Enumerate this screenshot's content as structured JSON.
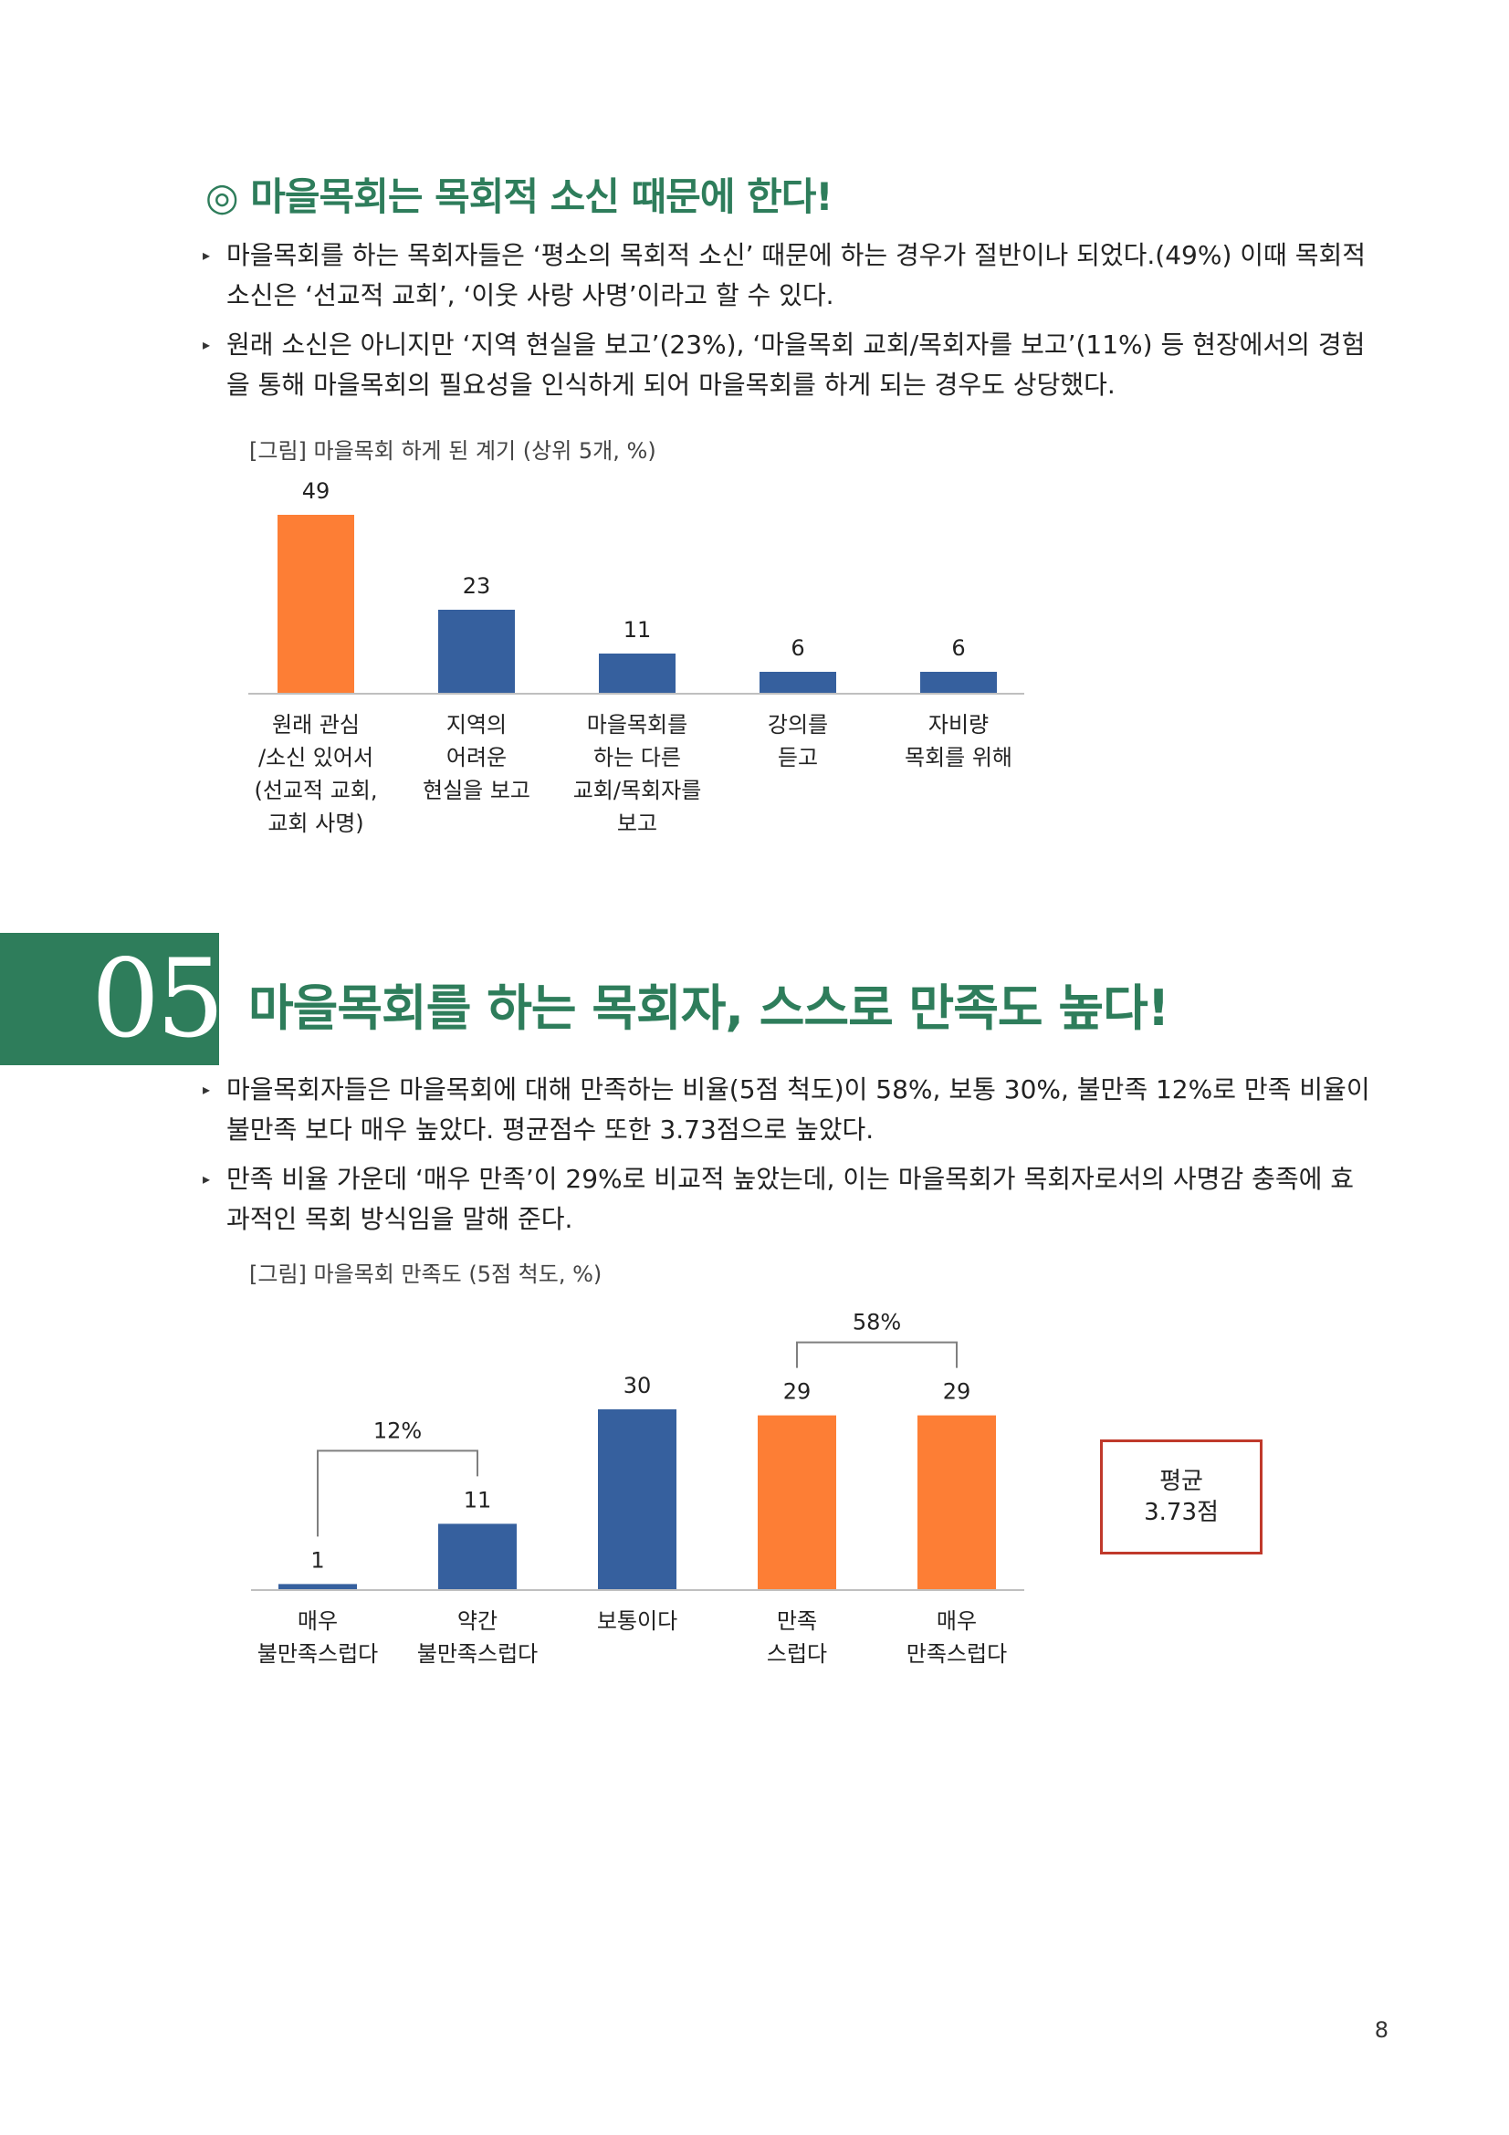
{
  "section1": {
    "heading": "◎ 마을목회는 목회적 소신 때문에 한다!",
    "bullets": [
      {
        "text": "마을목회를 하는 목회자들은 ‘평소의 목회적 소신’ 때문에 하는 경우가 절반이나 되었다.(49%) 이때 목회적 소신은 ‘선교적 교회’, ‘이웃 사랑 사명’이라고 할 수 있다."
      },
      {
        "text": "원래 소신은 아니지만 ‘지역 현실을 보고’(23%), ‘마을목회 교회/목회자를 보고’(11%) 등 현장에서의 경험을 통해 마을목회의 필요성을 인식하게 되어 마을목회를 하게 되는 경우도 상당했다."
      }
    ],
    "chart_caption": "[그림] 마을목회 하게 된 계기 (상위 5개, %)"
  },
  "section2": {
    "number": "05",
    "heading": "마을목회를 하는 목회자, 스스로 만족도 높다!",
    "bullets": [
      {
        "text": "마을목회자들은 마을목회에 대해 만족하는 비율(5점 척도)이 58%, 보통 30%, 불만족 12%로 만족 비율이 불만족 보다 매우 높았다. 평균점수 또한 3.73점으로 높았다."
      },
      {
        "text": "만족 비율 가운데 ‘매우 만족’이 29%로 비교적 높았는데, 이는 마을목회가 목회자로서의 사명감 충족에 효과적인 목회 방식임을 말해 준다."
      }
    ],
    "chart_caption": "[그림] 마을목회 만족도 (5점 척도, %)",
    "average_label": "평균",
    "average_value": "3.73점"
  },
  "chart_data": [
    {
      "type": "bar",
      "title": "[그림] 마을목회 하게 된 계기 (상위 5개, %)",
      "categories": [
        [
          "원래 관심",
          "/소신 있어서",
          "(선교적 교회,",
          "교회 사명)"
        ],
        [
          "지역의",
          "어려운",
          "현실을 보고"
        ],
        [
          "마을목회를",
          "하는 다른",
          "교회/목회자를",
          "보고"
        ],
        [
          "강의를",
          "듣고"
        ],
        [
          "자비량",
          "목회를 위해"
        ]
      ],
      "values": [
        49,
        23,
        11,
        6,
        6
      ],
      "colors": [
        "#fd7e35",
        "#36609e",
        "#36609e",
        "#36609e",
        "#36609e"
      ],
      "ylim": [
        0,
        49
      ]
    },
    {
      "type": "bar",
      "title": "[그림] 마을목회 만족도 (5점 척도, %)",
      "categories": [
        [
          "매우",
          "불만족스럽다"
        ],
        [
          "약간",
          "불만족스럽다"
        ],
        [
          "보통이다"
        ],
        [
          "만족",
          "스럽다"
        ],
        [
          "매우",
          "만족스럽다"
        ]
      ],
      "values": [
        1,
        11,
        30,
        29,
        29
      ],
      "colors": [
        "#36609e",
        "#36609e",
        "#36609e",
        "#fd7e35",
        "#fd7e35"
      ],
      "ylim": [
        0,
        30
      ],
      "annotations": [
        {
          "label": "12%",
          "from": 0,
          "to": 1
        },
        {
          "label": "58%",
          "from": 3,
          "to": 4
        }
      ]
    }
  ],
  "page_number": "8"
}
